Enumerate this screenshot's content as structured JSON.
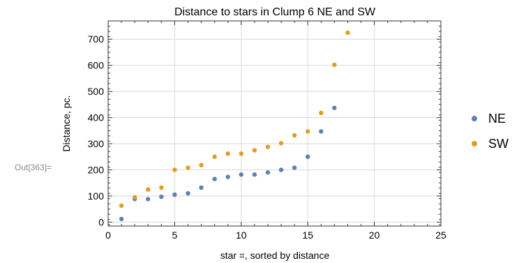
{
  "cell_label": "Out[363]=",
  "chart_data": {
    "type": "scatter",
    "title": "Distance to stars in Clump 6 NE and SW",
    "xlabel": "star ⌗, sorted by distance",
    "ylabel": "Distance, pc.",
    "xlim": [
      0,
      25
    ],
    "ylim": [
      -15,
      770
    ],
    "xticks": [
      0,
      5,
      10,
      15,
      20,
      25
    ],
    "yticks": [
      0,
      100,
      200,
      300,
      400,
      500,
      600,
      700
    ],
    "grid": true,
    "legend_position": "right",
    "series": [
      {
        "name": "NE",
        "color": "#5e81b5",
        "x": [
          1,
          2,
          3,
          4,
          5,
          6,
          7,
          8,
          9,
          10,
          11,
          12,
          13,
          14,
          15,
          16,
          17
        ],
        "y": [
          12,
          88,
          88,
          97,
          105,
          110,
          132,
          165,
          173,
          182,
          182,
          190,
          200,
          208,
          250,
          347,
          437
        ]
      },
      {
        "name": "SW",
        "color": "#e19c24",
        "x": [
          1,
          2,
          3,
          4,
          5,
          6,
          7,
          8,
          9,
          10,
          11,
          12,
          13,
          14,
          15,
          16,
          17,
          18
        ],
        "y": [
          63,
          95,
          125,
          132,
          200,
          208,
          218,
          250,
          262,
          262,
          275,
          288,
          302,
          332,
          347,
          418,
          602,
          725
        ]
      }
    ]
  }
}
